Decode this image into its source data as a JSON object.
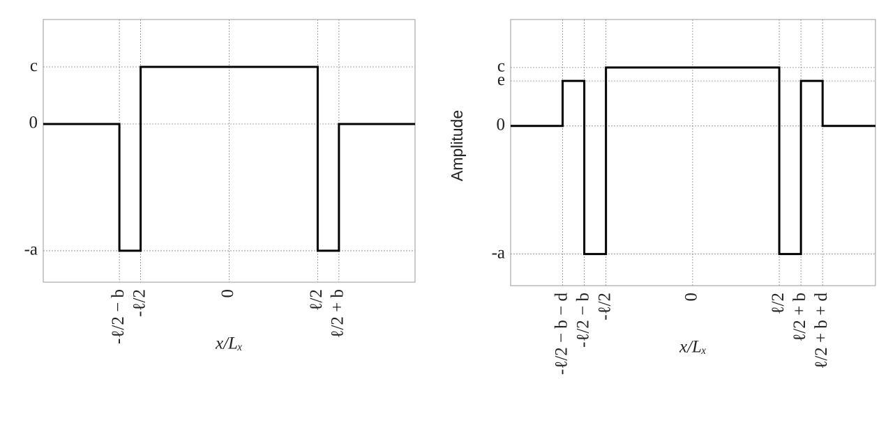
{
  "chart_data": [
    {
      "type": "line",
      "xlabel": "x/Lₓ",
      "x": [
        -2.1,
        -1.24,
        -1.24,
        -1.0,
        -1.0,
        1.0,
        1.0,
        1.24,
        1.24,
        2.1
      ],
      "series": [
        {
          "color": "#000000",
          "values": [
            0,
            0,
            -2.22,
            -2.22,
            1,
            1,
            -2.22,
            -2.22,
            0,
            0
          ]
        }
      ],
      "xlim": [
        -2.1,
        2.1
      ],
      "ylim": [
        -2.77,
        1.83
      ],
      "xticks": [
        {
          "value": -1.24,
          "label": "-ℓ/2 − b"
        },
        {
          "value": -1.0,
          "label": "-ℓ/2"
        },
        0,
        {
          "value": 1.0,
          "label": "ℓ/2"
        },
        {
          "value": 1.24,
          "label": "ℓ/2 + b"
        }
      ],
      "yticks": [
        {
          "value": -2.22,
          "label": "-a"
        },
        0,
        {
          "value": 1,
          "label": "c"
        }
      ],
      "grid": true
    },
    {
      "type": "line",
      "ylabel": "Amplitude",
      "xlabel": "x/Lₓ",
      "x": [
        -2.1,
        -1.5,
        -1.5,
        -1.25,
        -1.25,
        -1.0,
        -1.0,
        1.0,
        1.0,
        1.25,
        1.25,
        1.5,
        1.5,
        2.11
      ],
      "series": [
        {
          "color": "#000000",
          "values": [
            0,
            0,
            0.77,
            0.77,
            -2.19,
            -2.19,
            1,
            1,
            -2.19,
            -2.19,
            0.77,
            0.77,
            0,
            0
          ]
        }
      ],
      "xlim": [
        -2.1,
        2.11
      ],
      "ylim": [
        -2.73,
        1.82
      ],
      "xticks": [
        {
          "value": -1.5,
          "label": "-ℓ/2 − b − d"
        },
        {
          "value": -1.25,
          "label": "-ℓ/2 − b"
        },
        {
          "value": -1.0,
          "label": "-ℓ/2"
        },
        0,
        {
          "value": 1.0,
          "label": "ℓ/2"
        },
        {
          "value": 1.25,
          "label": "ℓ/2 + b"
        },
        {
          "value": 1.5,
          "label": "ℓ/2 + b + d"
        }
      ],
      "yticks": [
        {
          "value": -2.19,
          "label": "-a"
        },
        0,
        {
          "value": 0.77,
          "label": "e"
        },
        {
          "value": 1,
          "label": "c"
        }
      ],
      "grid": true
    }
  ]
}
